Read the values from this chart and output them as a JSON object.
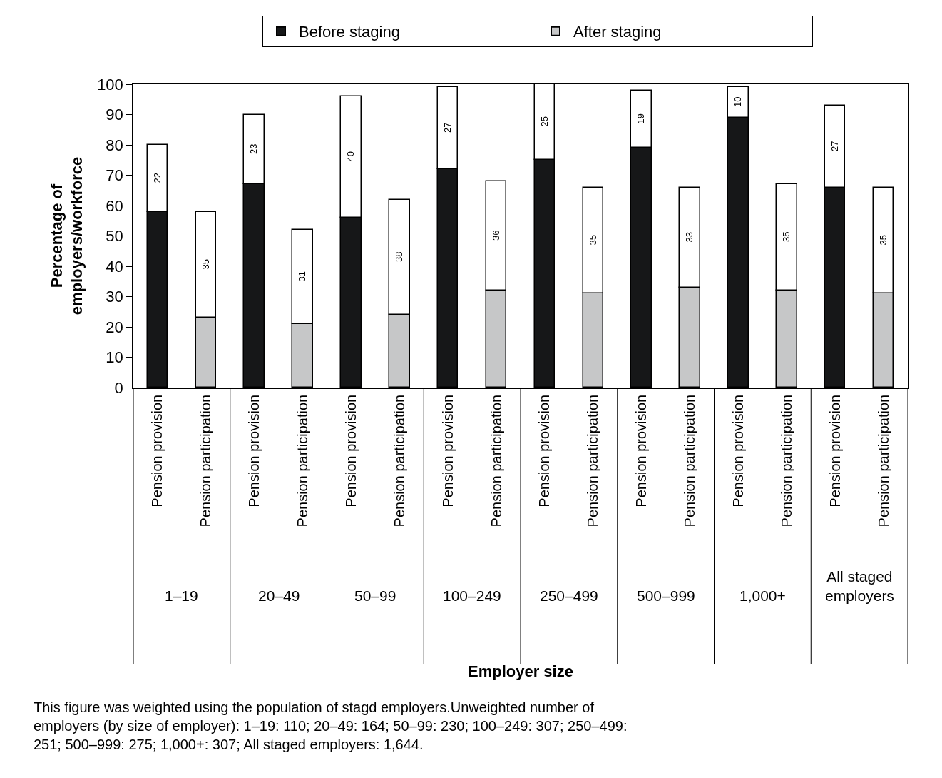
{
  "chart_data": {
    "type": "bar",
    "stacked": true,
    "ylabel": "Percentage of employers/workforce",
    "categories": [
      "Pension provision",
      "Pension participation",
      "Pension provision",
      "Pension participation",
      "Pension provision",
      "Pension participation",
      "Pension provision",
      "Pension participation",
      "Pension provision",
      "Pension participation",
      "Pension provision",
      "Pension participation",
      "Pension provision",
      "Pension participation",
      "Pension provision",
      "Pension participation"
    ],
    "series": [
      {
        "name": "Before staging",
        "color": "#161718",
        "values": [
          58,
          null,
          67,
          null,
          56,
          null,
          72,
          null,
          75,
          null,
          79,
          null,
          89,
          null,
          66,
          null
        ]
      },
      {
        "name": "After staging",
        "color": "#c6c7c8",
        "values": [
          null,
          23,
          null,
          21,
          null,
          24,
          null,
          32,
          null,
          31,
          null,
          33,
          null,
          32,
          null,
          31
        ]
      },
      {
        "color": "#ffffff",
        "values": [
          22,
          35,
          23,
          31,
          40,
          38,
          27,
          36,
          25,
          35,
          19,
          33,
          10,
          35,
          27,
          35
        ],
        "value_labels": [
          "22",
          "35",
          "23",
          "31",
          "40",
          "38",
          "27",
          "36",
          "25",
          "35",
          "19",
          "33",
          "10",
          "35",
          "27",
          "35"
        ]
      }
    ],
    "ylim": [
      0,
      100
    ],
    "yticks": [
      0,
      10,
      20,
      30,
      40,
      50,
      60,
      70,
      80,
      90,
      100
    ],
    "legend": "top",
    "annotations": [
      "1–19",
      "20–49",
      "50–99",
      "100–249",
      "250–499",
      "500–999",
      "1,000+",
      "All staged employers",
      "Employer size",
      "This figure was weighted using the population of stagd employers.Unweighted number of employers (by size of employer): 1–19: 110; 20–49: 164; 50–99: 230; 100–249: 307; 250–499: 251; 500–999: 275; 1,000+: 307; All staged employers: 1,644."
    ]
  }
}
